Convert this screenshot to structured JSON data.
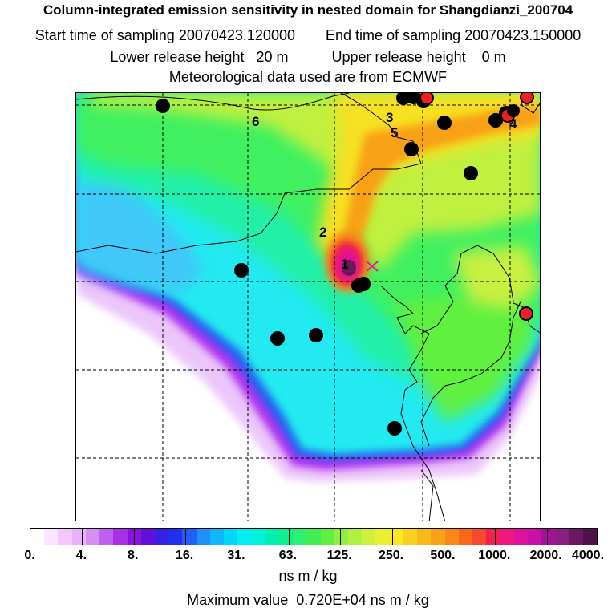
{
  "header": {
    "title": "Column-integrated emission sensitivity in nested domain for Shangdianzi_200704",
    "start_label": "Start time of sampling 20070423.120000",
    "end_label": "End time of sampling 20070423.150000",
    "lower_label": "Lower release height   20 m",
    "upper_label": "Upper release height    0 m",
    "met_label": "Meteorological data used are from ECMWF"
  },
  "map": {
    "point_labels": [
      {
        "id": "1",
        "text": "1"
      },
      {
        "id": "2",
        "text": "2"
      },
      {
        "id": "3",
        "text": "3"
      },
      {
        "id": "4",
        "text": "4"
      },
      {
        "id": "5",
        "text": "5"
      },
      {
        "id": "6",
        "text": "6"
      }
    ],
    "colors": {
      "white": "#ffffff",
      "lavender": "#e8b8f8",
      "violet": "#b030f0",
      "blue": "#2050f0",
      "cyan": "#00e8f0",
      "green": "#30f060",
      "yellowgreen": "#c8f040",
      "yellow": "#f8e020",
      "orange": "#f8a018",
      "red": "#f02040",
      "magenta": "#e010a0",
      "purple": "#701060",
      "station_black": "#000000",
      "station_red": "#f02020"
    }
  },
  "colorbar": {
    "ticks": [
      "0.",
      "4.",
      "8.",
      "16.",
      "31.",
      "63.",
      "125.",
      "250.",
      "500.",
      "1000.",
      "2000.",
      "4000."
    ],
    "colors": [
      "#ffffff",
      "#fbe4ff",
      "#f4c8fb",
      "#eab0f8",
      "#d690f4",
      "#c060f0",
      "#a830e8",
      "#8c10e0",
      "#6010d8",
      "#3820e0",
      "#2030f0",
      "#2060f8",
      "#2090f8",
      "#10b8f8",
      "#00d8f8",
      "#00eef0",
      "#00f0d8",
      "#00f0b0",
      "#10f090",
      "#30f070",
      "#40f050",
      "#60f040",
      "#90f040",
      "#b0f040",
      "#d0f040",
      "#e8f030",
      "#f8e820",
      "#f8d020",
      "#f8b818",
      "#f8a018",
      "#f88818",
      "#f86818",
      "#f84830",
      "#f02050",
      "#f01880",
      "#e010a0",
      "#c810a8",
      "#a81098",
      "#882080",
      "#6a1860",
      "#501048"
    ],
    "units": "ns m / kg"
  },
  "max_value": "Maximum value  0.720E+04 ns m / kg"
}
